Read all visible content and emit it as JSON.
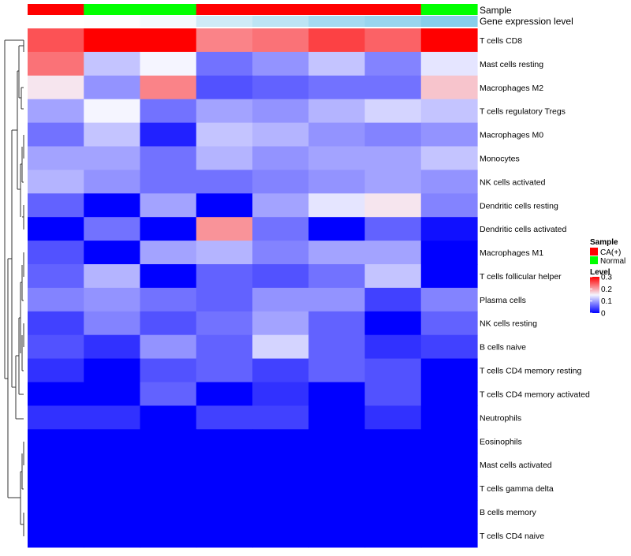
{
  "chart_data": {
    "type": "heatmap",
    "title": "",
    "annotation_labels": [
      "Sample",
      "Gene expression level"
    ],
    "sample_groups": [
      "CA(+)",
      "Normal",
      "Normal",
      "CA(+)",
      "CA(+)",
      "CA(+)",
      "CA(+)",
      "Normal"
    ],
    "expression_levels": [
      0.0,
      0.02,
      0.1,
      0.4,
      0.55,
      0.75,
      0.85,
      1.0
    ],
    "rows": [
      "T cells CD8",
      "Mast cells resting",
      "Macrophages M2",
      "T cells regulatory  Tregs",
      "Macrophages M0",
      "Monocytes",
      "NK cells activated",
      "Dendritic cells resting",
      "Dendritic cells activated",
      "Macrophages M1",
      "T cells follicular helper",
      "Plasma cells",
      "NK cells resting",
      "B cells naive",
      "T cells CD4 memory resting",
      "T cells CD4 memory activated",
      "Neutrophils",
      "Eosinophils",
      "Mast cells activated",
      "T cells gamma delta",
      "B cells memory",
      "T cells CD4 naive"
    ],
    "values": [
      [
        0.25,
        0.3,
        0.3,
        0.22,
        0.23,
        0.26,
        0.24,
        0.3
      ],
      [
        0.23,
        0.12,
        0.15,
        0.07,
        0.09,
        0.12,
        0.08,
        0.14
      ],
      [
        0.16,
        0.09,
        0.22,
        0.05,
        0.06,
        0.07,
        0.07,
        0.18
      ],
      [
        0.1,
        0.15,
        0.07,
        0.1,
        0.09,
        0.11,
        0.13,
        0.12
      ],
      [
        0.07,
        0.12,
        0.02,
        0.12,
        0.11,
        0.09,
        0.08,
        0.09
      ],
      [
        0.1,
        0.1,
        0.07,
        0.11,
        0.09,
        0.1,
        0.1,
        0.12
      ],
      [
        0.11,
        0.09,
        0.07,
        0.07,
        0.08,
        0.09,
        0.1,
        0.09
      ],
      [
        0.06,
        0.0,
        0.1,
        0.0,
        0.1,
        0.14,
        0.16,
        0.08
      ],
      [
        0.0,
        0.07,
        0.0,
        0.21,
        0.07,
        0.0,
        0.06,
        0.01
      ],
      [
        0.05,
        0.0,
        0.1,
        0.11,
        0.08,
        0.1,
        0.1,
        0.0
      ],
      [
        0.06,
        0.11,
        0.0,
        0.06,
        0.05,
        0.07,
        0.12,
        0.0
      ],
      [
        0.08,
        0.09,
        0.07,
        0.06,
        0.09,
        0.09,
        0.04,
        0.08
      ],
      [
        0.04,
        0.08,
        0.05,
        0.07,
        0.1,
        0.06,
        0.0,
        0.06
      ],
      [
        0.05,
        0.03,
        0.09,
        0.06,
        0.13,
        0.06,
        0.03,
        0.04
      ],
      [
        0.03,
        0.0,
        0.05,
        0.06,
        0.04,
        0.06,
        0.05,
        0.0
      ],
      [
        0.0,
        0.0,
        0.06,
        0.0,
        0.03,
        0.0,
        0.05,
        0.0
      ],
      [
        0.03,
        0.03,
        0.0,
        0.04,
        0.04,
        0.0,
        0.03,
        0.0
      ],
      [
        0.0,
        0.0,
        0.0,
        0.0,
        0.0,
        0.0,
        0.0,
        0.0
      ],
      [
        0.0,
        0.0,
        0.0,
        0.0,
        0.0,
        0.0,
        0.0,
        0.0
      ],
      [
        0.0,
        0.0,
        0.0,
        0.0,
        0.0,
        0.0,
        0.0,
        0.0
      ],
      [
        0.0,
        0.0,
        0.0,
        0.0,
        0.0,
        0.0,
        0.0,
        0.0
      ],
      [
        0.0,
        0.0,
        0.0,
        0.0,
        0.0,
        0.0,
        0.0,
        0.0
      ]
    ],
    "color_scale": {
      "min": 0,
      "mid": 0.15,
      "max": 0.3,
      "low_color": "#0000ff",
      "mid_color": "#f5f5ff",
      "high_color": "#ff0000"
    },
    "legend": {
      "position": "right",
      "sample_title": "Sample",
      "sample_entries": [
        {
          "label": "CA(+)",
          "color": "#ff0000"
        },
        {
          "label": "Normal",
          "color": "#00ff00"
        }
      ],
      "level_title": "Level",
      "level_ticks": [
        {
          "value": 0.3,
          "label": "0.3"
        },
        {
          "value": 0.2,
          "label": "0.2"
        },
        {
          "value": 0.1,
          "label": "0.1"
        },
        {
          "value": 0,
          "label": "0"
        }
      ]
    },
    "expression_colors": {
      "low": "#ffffff",
      "high": "#87ceeb"
    },
    "dendrogram": "row clustering tree shown on the left"
  }
}
